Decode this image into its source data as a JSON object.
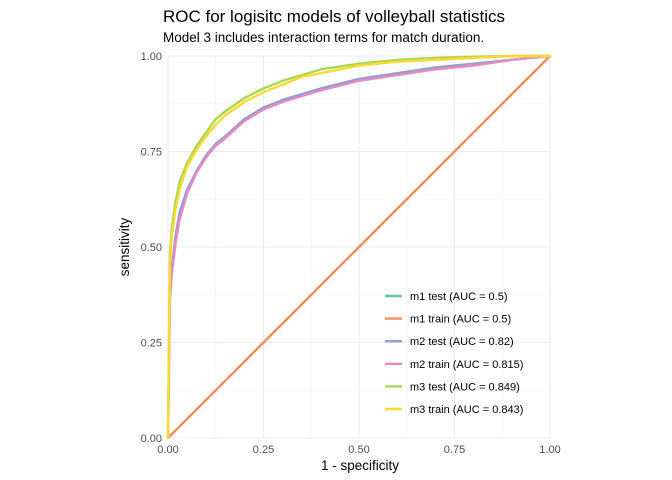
{
  "chart_data": {
    "type": "line",
    "title": "ROC for logisitc models of volleyball statistics",
    "subtitle": "Model 3 includes interaction terms for match duration.",
    "xlabel": "1 - specificity",
    "ylabel": "sensitivity",
    "xlim": [
      0,
      1
    ],
    "ylim": [
      0,
      1
    ],
    "x_ticks": [
      "0.00",
      "0.25",
      "0.50",
      "0.75",
      "1.00"
    ],
    "y_ticks": [
      "0.00",
      "0.25",
      "0.50",
      "0.75",
      "1.00"
    ],
    "grid": true,
    "legend_position": "bottom-right",
    "series": [
      {
        "name": "m1 test (AUC = 0.5)",
        "color": "#66c2a5",
        "x": [
          0,
          1
        ],
        "y": [
          0,
          1
        ]
      },
      {
        "name": "m1 train (AUC = 0.5)",
        "color": "#fc8d62",
        "x": [
          0,
          1
        ],
        "y": [
          0,
          1
        ]
      },
      {
        "name": "m2 test (AUC = 0.82)",
        "color": "#8da0cb",
        "x": [
          0,
          0.005,
          0.01,
          0.02,
          0.03,
          0.05,
          0.075,
          0.1,
          0.125,
          0.15,
          0.2,
          0.25,
          0.3,
          0.35,
          0.4,
          0.5,
          0.6,
          0.7,
          0.8,
          0.9,
          1.0
        ],
        "y": [
          0,
          0.38,
          0.45,
          0.53,
          0.59,
          0.65,
          0.7,
          0.74,
          0.77,
          0.79,
          0.835,
          0.865,
          0.885,
          0.9,
          0.915,
          0.94,
          0.955,
          0.97,
          0.98,
          0.99,
          1.0
        ]
      },
      {
        "name": "m2 train (AUC = 0.815)",
        "color": "#e78ac3",
        "x": [
          0,
          0.005,
          0.01,
          0.02,
          0.03,
          0.05,
          0.075,
          0.1,
          0.125,
          0.15,
          0.2,
          0.25,
          0.3,
          0.35,
          0.4,
          0.5,
          0.6,
          0.7,
          0.8,
          0.9,
          1.0
        ],
        "y": [
          0,
          0.36,
          0.43,
          0.51,
          0.57,
          0.64,
          0.695,
          0.735,
          0.765,
          0.785,
          0.83,
          0.86,
          0.88,
          0.895,
          0.91,
          0.935,
          0.95,
          0.965,
          0.975,
          0.99,
          1.0
        ]
      },
      {
        "name": "m3 test (AUC = 0.849)",
        "color": "#a6d854",
        "x": [
          0,
          0.005,
          0.01,
          0.02,
          0.03,
          0.05,
          0.075,
          0.1,
          0.125,
          0.15,
          0.2,
          0.25,
          0.3,
          0.35,
          0.4,
          0.5,
          0.6,
          0.7,
          0.8,
          0.9,
          1.0
        ],
        "y": [
          0,
          0.48,
          0.55,
          0.62,
          0.67,
          0.72,
          0.765,
          0.8,
          0.835,
          0.855,
          0.89,
          0.915,
          0.935,
          0.95,
          0.965,
          0.98,
          0.99,
          0.995,
          0.998,
          1.0,
          1.0
        ]
      },
      {
        "name": "m3 train (AUC = 0.843)",
        "color": "#ffd92f",
        "x": [
          0,
          0.005,
          0.01,
          0.02,
          0.03,
          0.05,
          0.075,
          0.1,
          0.125,
          0.15,
          0.2,
          0.25,
          0.3,
          0.35,
          0.4,
          0.5,
          0.6,
          0.7,
          0.8,
          0.9,
          1.0
        ],
        "y": [
          0,
          0.46,
          0.53,
          0.6,
          0.65,
          0.71,
          0.755,
          0.79,
          0.82,
          0.845,
          0.88,
          0.905,
          0.925,
          0.945,
          0.955,
          0.975,
          0.985,
          0.99,
          0.995,
          1.0,
          1.0
        ]
      }
    ]
  }
}
